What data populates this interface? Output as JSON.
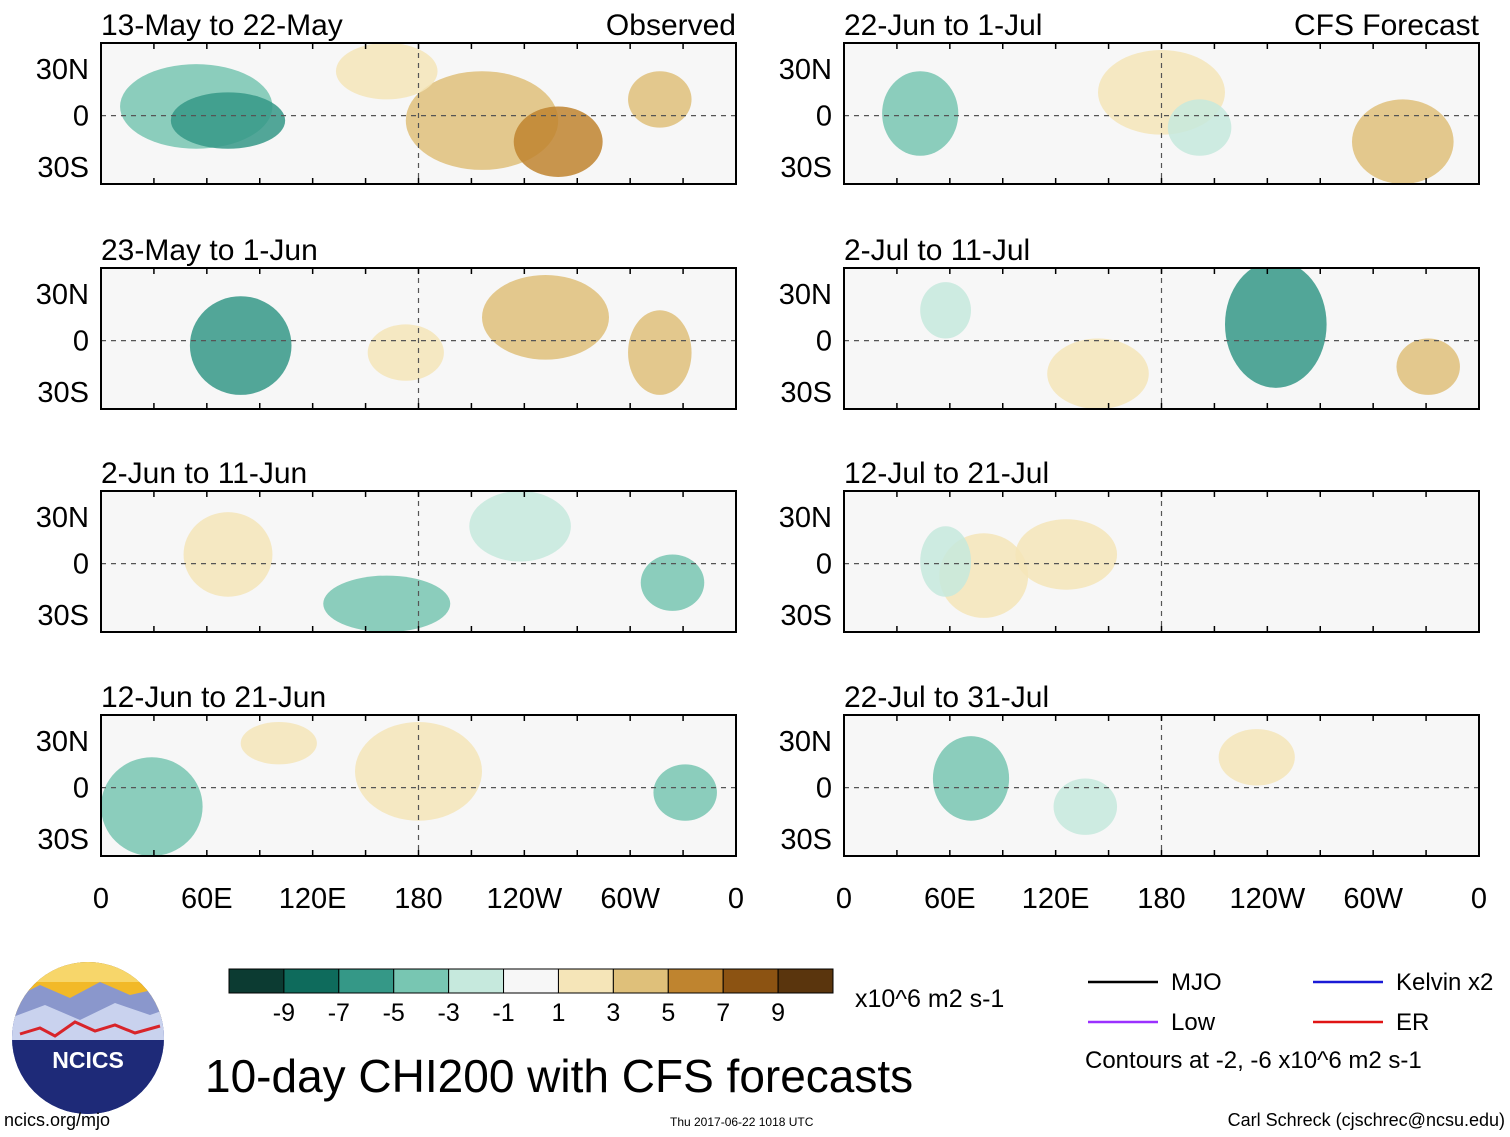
{
  "chart_data": {
    "type": "heatmap",
    "title": "10-day CHI200 with CFS forecasts",
    "observed_label": "Observed",
    "forecast_label": "CFS Forecast",
    "x_ticks": [
      "0",
      "60E",
      "120E",
      "180",
      "120W",
      "60W",
      "0"
    ],
    "y_ticks": [
      "30N",
      "0",
      "30S"
    ],
    "panels": [
      {
        "column": "observed",
        "period": "13-May to 22-May"
      },
      {
        "column": "observed",
        "period": "23-May to 1-Jun"
      },
      {
        "column": "observed",
        "period": "2-Jun to 11-Jun"
      },
      {
        "column": "observed",
        "period": "12-Jun to 21-Jun"
      },
      {
        "column": "forecast",
        "period": "22-Jun to 1-Jul"
      },
      {
        "column": "forecast",
        "period": "2-Jul to 11-Jul"
      },
      {
        "column": "forecast",
        "period": "12-Jul to 21-Jul"
      },
      {
        "column": "forecast",
        "period": "22-Jul to 31-Jul"
      }
    ],
    "colorbar": {
      "labels": [
        "-9",
        "-7",
        "-5",
        "-3",
        "-1",
        "1",
        "3",
        "5",
        "7",
        "9"
      ],
      "colors": [
        "#0c3b32",
        "#0e6b5c",
        "#359887",
        "#78c6b2",
        "#c6e9dd",
        "#f7f7f7",
        "#f5e5b8",
        "#dfc07a",
        "#bf842f",
        "#8c5312",
        "#5a350d"
      ],
      "units": "x10^6 m2 s-1"
    },
    "legend": [
      {
        "label": "MJO",
        "color": "#000000"
      },
      {
        "label": "Kelvin x2",
        "color": "#1a1ad6"
      },
      {
        "label": "Low",
        "color": "#9b30ff"
      },
      {
        "label": "ER",
        "color": "#e01414"
      }
    ],
    "contour_note": "Contours at -2, -6 x10^6 m2 s-1"
  },
  "footer": {
    "url": "ncics.org/mjo",
    "timestamp": "Thu 2017-06-22 1018 UTC",
    "author": "Carl Schreck (cjschrec@ncsu.edu)",
    "logo_text": "NCICS"
  }
}
